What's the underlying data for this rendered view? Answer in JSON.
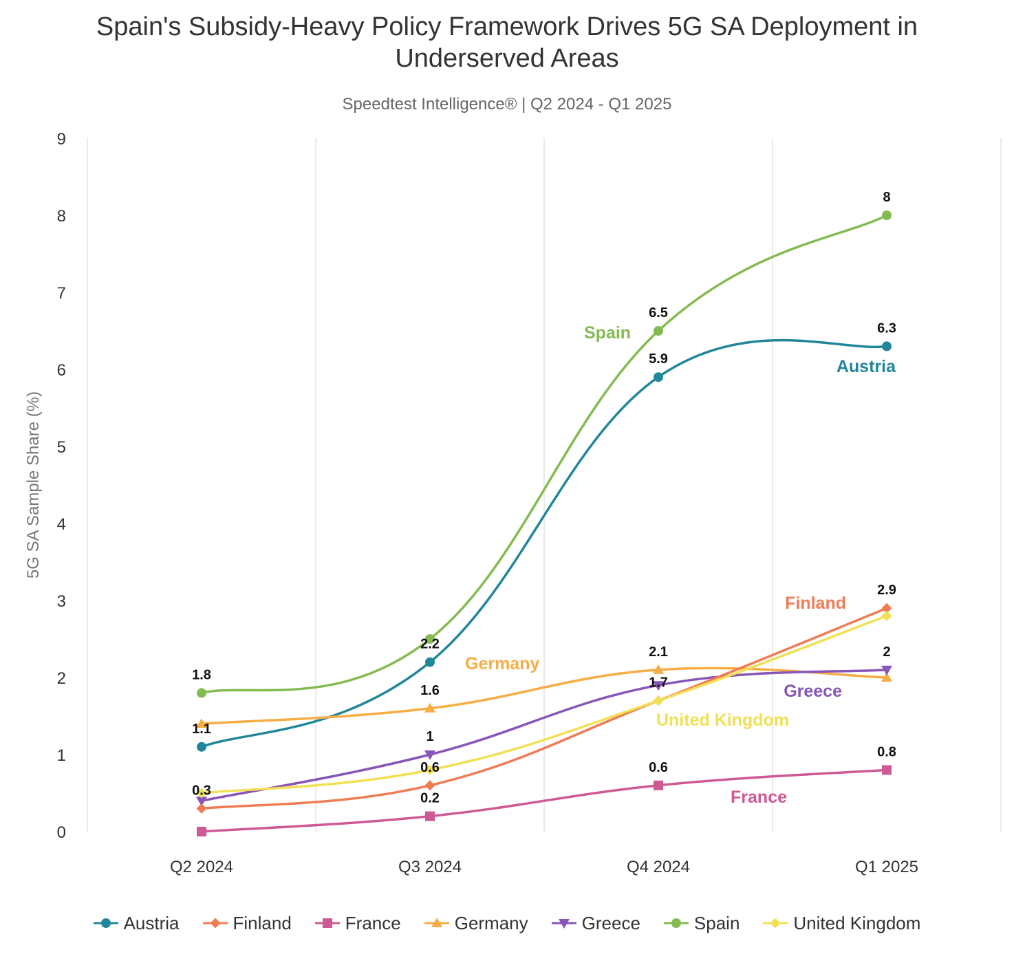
{
  "chart_data": {
    "type": "line",
    "title": "Spain's Subsidy-Heavy Policy Framework Drives 5G SA Deployment in Underserved Areas",
    "subtitle": "Speedtest Intelligence® | Q2 2024 - Q1 2025",
    "xlabel": "",
    "ylabel": "5G SA Sample Share (%)",
    "ylim": [
      0,
      9
    ],
    "yticks": [
      "0",
      "1",
      "2",
      "3",
      "4",
      "5",
      "6",
      "7",
      "8",
      "9"
    ],
    "categories": [
      "Q2 2024",
      "Q3 2024",
      "Q4 2024",
      "Q1 2025"
    ],
    "grid": "vertical",
    "legend_position": "bottom",
    "series": [
      {
        "name": "Austria",
        "color": "#22869b",
        "marker": "circle",
        "values": [
          1.1,
          2.2,
          5.9,
          6.3
        ],
        "labels": [
          "1.1",
          "2.2",
          "5.9",
          "6.3"
        ]
      },
      {
        "name": "Finland",
        "color": "#ef7c55",
        "marker": "diamond",
        "values": [
          0.3,
          0.6,
          1.7,
          2.9
        ],
        "labels": [
          "0.3",
          "0.6",
          "1.7",
          "2.9"
        ]
      },
      {
        "name": "France",
        "color": "#cf5995",
        "marker": "square",
        "values": [
          0,
          0.2,
          0.6,
          0.8
        ],
        "labels": [
          "",
          "0.2",
          "0.6",
          "0.8"
        ]
      },
      {
        "name": "Germany",
        "color": "#f7ad45",
        "marker": "triangle",
        "values": [
          1.4,
          1.6,
          2.1,
          2.0
        ],
        "labels": [
          "",
          "1.6",
          "2.1",
          ""
        ]
      },
      {
        "name": "Greece",
        "color": "#8756b8",
        "marker": "triangle-down",
        "values": [
          0.4,
          1.0,
          1.9,
          2.1
        ],
        "labels": [
          "",
          "1",
          "",
          "2"
        ]
      },
      {
        "name": "Spain",
        "color": "#83bb51",
        "marker": "circle",
        "values": [
          1.8,
          2.5,
          6.5,
          8.0
        ],
        "labels": [
          "1.8",
          "",
          "6.5",
          "8"
        ]
      },
      {
        "name": "United Kingdom",
        "color": "#f2e054",
        "marker": "diamond",
        "values": [
          0.5,
          0.8,
          1.7,
          2.8
        ],
        "labels": [
          "",
          "",
          "",
          ""
        ]
      }
    ],
    "annotations": [
      {
        "text": "Spain",
        "series": "Spain"
      },
      {
        "text": "Austria",
        "series": "Austria"
      },
      {
        "text": "Finland",
        "series": "Finland"
      },
      {
        "text": "Germany",
        "series": "Germany"
      },
      {
        "text": "Greece",
        "series": "Greece"
      },
      {
        "text": "United Kingdom",
        "series": "United Kingdom"
      },
      {
        "text": "France",
        "series": "France"
      }
    ]
  }
}
